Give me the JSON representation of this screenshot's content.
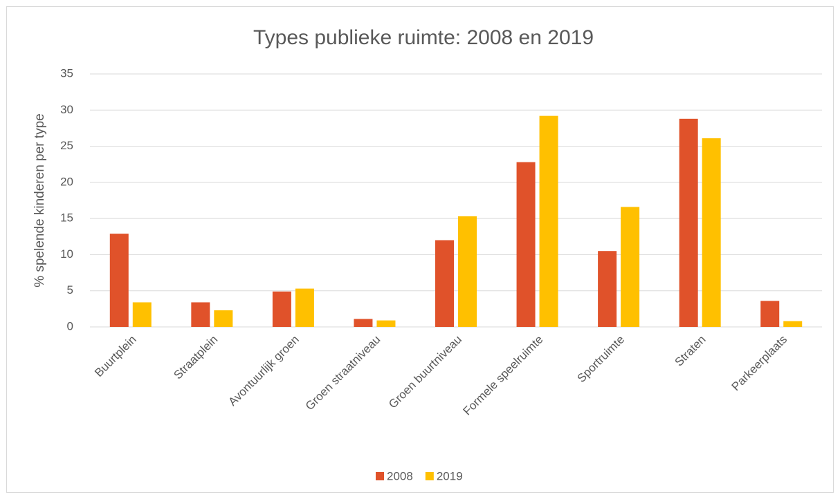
{
  "chart_data": {
    "type": "bar",
    "title": "Types publieke ruimte: 2008 en 2019",
    "ylabel": "% spelende kinderen per type",
    "categories": [
      "Buurtplein",
      "Straatplein",
      "Avontuurlijk groen",
      "Groen straatniveau",
      "Groen buurtniveau",
      "Formele speelruimte",
      "Sportruimte",
      "Straten",
      "Parkeerplaats"
    ],
    "series": [
      {
        "name": "2008",
        "color": "#e0522a",
        "values": [
          12.9,
          3.4,
          4.9,
          1.1,
          12.0,
          22.8,
          10.5,
          28.8,
          3.6
        ]
      },
      {
        "name": "2019",
        "color": "#ffc000",
        "values": [
          3.4,
          2.3,
          5.3,
          0.9,
          15.3,
          29.2,
          16.6,
          26.1,
          0.8
        ]
      }
    ],
    "ylim": [
      0,
      35
    ],
    "yticks": [
      0,
      5,
      10,
      15,
      20,
      25,
      30,
      35
    ],
    "grid": true,
    "legend": "bottom"
  }
}
